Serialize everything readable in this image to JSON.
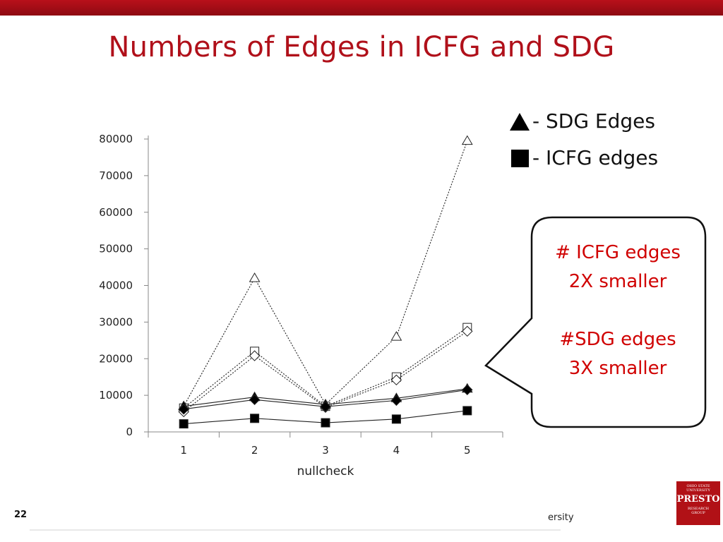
{
  "slide": {
    "title": "Numbers of Edges in ICFG and SDG",
    "page_number": "22",
    "footer_text": "ersity",
    "accent_color": "#b0101a"
  },
  "legend": {
    "sdg_label": "- SDG Edges",
    "icfg_label": "- ICFG edges"
  },
  "callout": {
    "line1": "# ICFG edges",
    "line2": "2X smaller",
    "line3": "#SDG edges",
    "line4": "3X smaller",
    "text_color": "#d00000"
  },
  "logo": {
    "top_line1": "OHIO STATE",
    "top_line2": "UNIVERSITY",
    "name": "PRESTO",
    "bottom_line1": "RESEARCH",
    "bottom_line2": "GROUP"
  },
  "chart_data": {
    "type": "line",
    "xlabel": "nullcheck",
    "ylabel": "",
    "categories": [
      "1",
      "2",
      "3",
      "4",
      "5"
    ],
    "ylim": [
      0,
      80000
    ],
    "yticks": [
      0,
      10000,
      20000,
      30000,
      40000,
      50000,
      60000,
      70000,
      80000
    ],
    "grid": false,
    "legend_position": "top-right",
    "series": [
      {
        "marker": "triangle-open",
        "line": "dotted",
        "values": [
          7000,
          42000,
          7500,
          26000,
          79500
        ]
      },
      {
        "marker": "square-open",
        "line": "dotted",
        "values": [
          6500,
          22000,
          7000,
          15000,
          28500
        ]
      },
      {
        "marker": "diamond-open",
        "line": "dotted",
        "values": [
          5500,
          20800,
          6700,
          14200,
          27500
        ]
      },
      {
        "marker": "triangle-filled",
        "line": "solid",
        "values": [
          7000,
          9500,
          7500,
          9200,
          11800
        ]
      },
      {
        "marker": "diamond-filled",
        "line": "solid",
        "values": [
          6200,
          8800,
          6900,
          8600,
          11500
        ]
      },
      {
        "marker": "square-filled",
        "line": "solid",
        "values": [
          2200,
          3700,
          2500,
          3500,
          5800
        ]
      }
    ]
  }
}
